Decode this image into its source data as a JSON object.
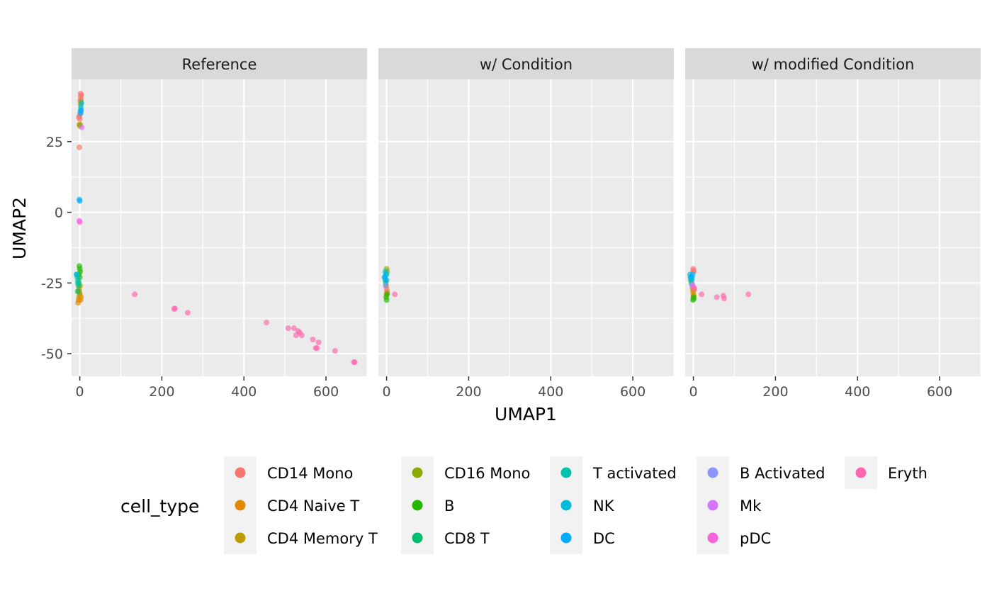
{
  "chart_data": {
    "type": "scatter",
    "facets": [
      "Reference",
      "w/ Condition",
      "w/ modified Condition"
    ],
    "xlabel": "UMAP1",
    "ylabel": "UMAP2",
    "xlim": [
      -20,
      700
    ],
    "ylim": [
      -58,
      47
    ],
    "x_ticks": [
      0,
      200,
      400,
      600
    ],
    "x_tick_labels": [
      "0",
      "200",
      "400",
      "600"
    ],
    "y_ticks": [
      -50,
      -25,
      0,
      25
    ],
    "y_tick_labels": [
      "-50",
      "-25",
      "0",
      "25"
    ],
    "grid": true,
    "legend": {
      "title": "cell_type",
      "position": "bottom",
      "entries": [
        "CD14 Mono",
        "CD4 Naive T",
        "CD4 Memory T",
        "CD16 Mono",
        "B",
        "CD8 T",
        "T activated",
        "NK",
        "DC",
        "B Activated",
        "Mk",
        "pDC",
        "Eryth"
      ]
    },
    "colors": {
      "CD14 Mono": "#F8766D",
      "CD4 Naive T": "#E18A00",
      "CD4 Memory T": "#BE9C00",
      "CD16 Mono": "#8CAB00",
      "B": "#24B700",
      "CD8 T": "#00BE70",
      "T activated": "#00C1AB",
      "NK": "#00BBDA",
      "DC": "#00ACFC",
      "B Activated": "#8B93FF",
      "Mk": "#D575FE",
      "pDC": "#F962DD",
      "Eryth": "#FF65AC"
    },
    "series": [
      {
        "facet": "Reference",
        "name": "CD14 Mono",
        "points": [
          [
            2,
            41
          ],
          [
            3,
            40
          ],
          [
            1,
            39.5
          ],
          [
            -1,
            34
          ],
          [
            0,
            33
          ],
          [
            2,
            42
          ],
          [
            4,
            41.5
          ],
          [
            -2,
            33.5
          ],
          [
            1,
            35
          ],
          [
            -1,
            23
          ]
        ]
      },
      {
        "facet": "Reference",
        "name": "CD4 Naive T",
        "points": [
          [
            -2,
            -30
          ],
          [
            -3,
            -31
          ],
          [
            0,
            -29
          ],
          [
            -4,
            -32
          ],
          [
            2,
            -31
          ],
          [
            -1,
            -28
          ],
          [
            3,
            -30
          ]
        ]
      },
      {
        "facet": "Reference",
        "name": "CD4 Memory T",
        "points": [
          [
            -1,
            31
          ],
          [
            0,
            30.5
          ],
          [
            -2,
            -27
          ],
          [
            1,
            -26
          ],
          [
            -3,
            -28
          ],
          [
            0,
            -29
          ]
        ]
      },
      {
        "facet": "Reference",
        "name": "CD16 Mono",
        "points": [
          [
            2,
            38
          ],
          [
            3,
            39
          ],
          [
            1,
            31
          ]
        ]
      },
      {
        "facet": "Reference",
        "name": "B",
        "points": [
          [
            -1,
            -19
          ],
          [
            0,
            -20
          ],
          [
            1,
            -21
          ],
          [
            -2,
            -22
          ],
          [
            0,
            -23
          ]
        ]
      },
      {
        "facet": "Reference",
        "name": "CD8 T",
        "points": [
          [
            -4,
            -24
          ],
          [
            -3,
            -26
          ],
          [
            -5,
            -28
          ],
          [
            -2,
            -25
          ]
        ]
      },
      {
        "facet": "Reference",
        "name": "T activated",
        "points": [
          [
            -6,
            -23
          ],
          [
            -5,
            -25
          ],
          [
            -7,
            -22
          ]
        ]
      },
      {
        "facet": "Reference",
        "name": "NK",
        "points": [
          [
            3,
            37
          ],
          [
            4,
            38.5
          ],
          [
            2,
            36
          ],
          [
            -8,
            -22
          ]
        ]
      },
      {
        "facet": "Reference",
        "name": "DC",
        "points": [
          [
            2,
            35
          ],
          [
            3,
            36
          ],
          [
            0,
            4
          ],
          [
            -1,
            4.5
          ]
        ]
      },
      {
        "facet": "Reference",
        "name": "Mk",
        "points": [
          [
            5,
            30
          ]
        ]
      },
      {
        "facet": "Reference",
        "name": "pDC",
        "points": [
          [
            -1,
            -3
          ],
          [
            0,
            -3.5
          ]
        ]
      },
      {
        "facet": "Reference",
        "name": "Eryth",
        "points": [
          [
            134,
            -29
          ],
          [
            232,
            -34
          ],
          [
            230,
            -34.2
          ],
          [
            263,
            -35.5
          ],
          [
            455,
            -39
          ],
          [
            508,
            -41
          ],
          [
            522,
            -41
          ],
          [
            527,
            -43.5
          ],
          [
            532,
            -42
          ],
          [
            536,
            -42.5
          ],
          [
            541,
            -43.5
          ],
          [
            568,
            -45
          ],
          [
            575,
            -48
          ],
          [
            578,
            -48
          ],
          [
            582,
            -46
          ],
          [
            622,
            -49
          ],
          [
            668,
            -53
          ],
          [
            670,
            -53
          ]
        ]
      },
      {
        "facet": "w/ Condition",
        "name": "CD14 Mono",
        "points": [
          [
            0,
            -27
          ],
          [
            1,
            -28
          ]
        ]
      },
      {
        "facet": "w/ Condition",
        "name": "CD4 Naive T",
        "points": [
          [
            -1,
            -26
          ],
          [
            0,
            -29
          ],
          [
            1,
            -28.5
          ]
        ]
      },
      {
        "facet": "w/ Condition",
        "name": "CD16 Mono",
        "points": [
          [
            0,
            -20
          ],
          [
            1,
            -21
          ]
        ]
      },
      {
        "facet": "w/ Condition",
        "name": "B",
        "points": [
          [
            -1,
            -30
          ],
          [
            0,
            -31
          ],
          [
            1,
            -29
          ]
        ]
      },
      {
        "facet": "w/ Condition",
        "name": "CD8 T",
        "points": [
          [
            -2,
            -25
          ],
          [
            -3,
            -24
          ]
        ]
      },
      {
        "facet": "w/ Condition",
        "name": "T activated",
        "points": [
          [
            -4,
            -23
          ],
          [
            -2,
            -22
          ]
        ]
      },
      {
        "facet": "w/ Condition",
        "name": "NK",
        "points": [
          [
            -3,
            -21
          ],
          [
            0,
            -22
          ]
        ]
      },
      {
        "facet": "w/ Condition",
        "name": "DC",
        "points": [
          [
            -5,
            -23
          ],
          [
            0,
            -24
          ]
        ]
      },
      {
        "facet": "w/ Condition",
        "name": "B Activated",
        "points": [
          [
            -2,
            -26
          ]
        ]
      },
      {
        "facet": "w/ Condition",
        "name": "Eryth",
        "points": [
          [
            20,
            -29
          ]
        ]
      },
      {
        "facet": "w/ modified Condition",
        "name": "CD14 Mono",
        "points": [
          [
            0,
            -20
          ],
          [
            1,
            -21
          ],
          [
            -1,
            -20.5
          ]
        ]
      },
      {
        "facet": "w/ modified Condition",
        "name": "CD4 Naive T",
        "points": [
          [
            -1,
            -28
          ],
          [
            0,
            -29
          ],
          [
            1,
            -27.5
          ]
        ]
      },
      {
        "facet": "w/ modified Condition",
        "name": "CD4 Memory T",
        "points": [
          [
            -2,
            -27
          ],
          [
            1,
            -29.5
          ]
        ]
      },
      {
        "facet": "w/ modified Condition",
        "name": "B",
        "points": [
          [
            -1,
            -31
          ],
          [
            0,
            -30
          ],
          [
            1,
            -30.5
          ]
        ]
      },
      {
        "facet": "w/ modified Condition",
        "name": "CD8 T",
        "points": [
          [
            -5,
            -25
          ],
          [
            -6,
            -24
          ]
        ]
      },
      {
        "facet": "w/ modified Condition",
        "name": "T activated",
        "points": [
          [
            -7,
            -23
          ],
          [
            -4,
            -24
          ]
        ]
      },
      {
        "facet": "w/ modified Condition",
        "name": "NK",
        "points": [
          [
            -8,
            -22
          ],
          [
            -3,
            -23
          ]
        ]
      },
      {
        "facet": "w/ modified Condition",
        "name": "DC",
        "points": [
          [
            -6,
            -23
          ],
          [
            -2,
            -22
          ]
        ]
      },
      {
        "facet": "w/ modified Condition",
        "name": "B Activated",
        "points": [
          [
            -3,
            -26
          ]
        ]
      },
      {
        "facet": "w/ modified Condition",
        "name": "Mk",
        "points": [
          [
            -2,
            -25.5
          ]
        ]
      },
      {
        "facet": "w/ modified Condition",
        "name": "Eryth",
        "points": [
          [
            0,
            -26.5
          ],
          [
            3,
            -27
          ],
          [
            20,
            -29
          ],
          [
            57,
            -30
          ],
          [
            73,
            -29.5
          ],
          [
            75,
            -30.5
          ],
          [
            134,
            -29
          ]
        ]
      }
    ]
  }
}
